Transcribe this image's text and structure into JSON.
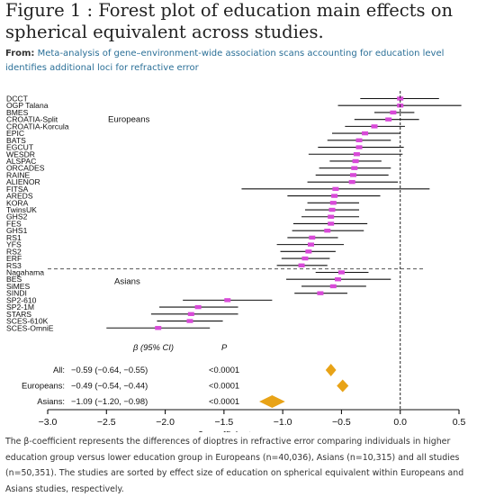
{
  "figure_title": "Figure 1 : Forest plot of education main effects on spherical equivalent across studies.",
  "from_label": "From:",
  "from_link": "Meta-analysis of gene–environment-wide association scans accounting for education level identifies additional loci for refractive error",
  "caption": "The β-coefficient represents the differences of dioptres in refractive error comparing individuals in higher education group versus lower education group in Europeans (n=40,036), Asians (n=10,315) and all studies (n=50,351). The studies are sorted by effect size of education on spherical equivalent within Europeans and Asians studies, respectively.",
  "colors": {
    "accent": "#d84ad8",
    "diamond": "#e8a317",
    "link": "#2a6f97"
  },
  "chart_data": {
    "type": "forest",
    "xlabel": "β-coefficient",
    "xlim": [
      -3.0,
      0.5
    ],
    "ticks": [
      -3.0,
      -2.5,
      -2.0,
      -1.5,
      -1.0,
      -0.5,
      0.0,
      0.5
    ],
    "tick_labels": [
      "−3.0",
      "−2.5",
      "−2.0",
      "−1.5",
      "−1.0",
      "−0.5",
      "0.0",
      "0.5"
    ],
    "reference_line": 0,
    "groups": [
      {
        "name": "Europeans",
        "studies": [
          {
            "study": "DCCT",
            "beta": 0.0,
            "lo": -0.34,
            "hi": 0.33
          },
          {
            "study": "OGP Talana",
            "beta": 0.0,
            "lo": -0.53,
            "hi": 0.52
          },
          {
            "study": "BMES",
            "beta": -0.06,
            "lo": -0.22,
            "hi": 0.12
          },
          {
            "study": "CROATIA-Split",
            "beta": -0.1,
            "lo": -0.39,
            "hi": 0.16
          },
          {
            "study": "CROATIA-Korcula",
            "beta": -0.22,
            "lo": -0.47,
            "hi": 0.04
          },
          {
            "study": "EPIC",
            "beta": -0.3,
            "lo": -0.58,
            "hi": 0.0
          },
          {
            "study": "BATS",
            "beta": -0.35,
            "lo": -0.62,
            "hi": -0.08
          },
          {
            "study": "EGCUT",
            "beta": -0.35,
            "lo": -0.7,
            "hi": 0.03
          },
          {
            "study": "WESDR",
            "beta": -0.37,
            "lo": -0.78,
            "hi": 0.02
          },
          {
            "study": "ALSPAC",
            "beta": -0.38,
            "lo": -0.6,
            "hi": -0.16
          },
          {
            "study": "ORCADES",
            "beta": -0.39,
            "lo": -0.69,
            "hi": -0.08
          },
          {
            "study": "RAINE",
            "beta": -0.4,
            "lo": -0.72,
            "hi": -0.1
          },
          {
            "study": "ALIENOR",
            "beta": -0.41,
            "lo": -0.79,
            "hi": -0.02
          },
          {
            "study": "FITSA",
            "beta": -0.55,
            "lo": -1.35,
            "hi": 0.25
          },
          {
            "study": "AREDS",
            "beta": -0.56,
            "lo": -0.96,
            "hi": -0.17
          },
          {
            "study": "KORA",
            "beta": -0.57,
            "lo": -0.79,
            "hi": -0.35
          },
          {
            "study": "TwinsUK",
            "beta": -0.58,
            "lo": -0.81,
            "hi": -0.35
          },
          {
            "study": "GHS2",
            "beta": -0.59,
            "lo": -0.84,
            "hi": -0.35
          },
          {
            "study": "FES",
            "beta": -0.59,
            "lo": -0.91,
            "hi": -0.28
          },
          {
            "study": "GHS1",
            "beta": -0.62,
            "lo": -0.92,
            "hi": -0.31
          },
          {
            "study": "RS1",
            "beta": -0.75,
            "lo": -0.96,
            "hi": -0.53
          },
          {
            "study": "YFS",
            "beta": -0.76,
            "lo": -1.05,
            "hi": -0.48
          },
          {
            "study": "RS2",
            "beta": -0.78,
            "lo": -1.02,
            "hi": -0.55
          },
          {
            "study": "ERF",
            "beta": -0.81,
            "lo": -1.01,
            "hi": -0.6
          },
          {
            "study": "RS3",
            "beta": -0.84,
            "lo": -1.05,
            "hi": -0.62
          }
        ]
      },
      {
        "name": "Asians",
        "studies": [
          {
            "study": "Nagahama",
            "beta": -0.5,
            "lo": -0.72,
            "hi": -0.27
          },
          {
            "study": "BES",
            "beta": -0.53,
            "lo": -0.97,
            "hi": -0.08
          },
          {
            "study": "SiMES",
            "beta": -0.57,
            "lo": -0.84,
            "hi": -0.29
          },
          {
            "study": "SINDI",
            "beta": -0.68,
            "lo": -0.9,
            "hi": -0.45
          },
          {
            "study": "SP2-610",
            "beta": -1.47,
            "lo": -1.85,
            "hi": -1.09
          },
          {
            "study": "SP2-1M",
            "beta": -1.72,
            "lo": -2.05,
            "hi": -1.38
          },
          {
            "study": "STARS",
            "beta": -1.78,
            "lo": -2.12,
            "hi": -1.38
          },
          {
            "study": "SCES-610K",
            "beta": -1.79,
            "lo": -2.07,
            "hi": -1.51
          },
          {
            "study": "SCES-OmniE",
            "beta": -2.06,
            "lo": -2.5,
            "hi": -1.62
          }
        ]
      }
    ],
    "table_header": {
      "beta": "β (95% CI)",
      "p": "P"
    },
    "summary": [
      {
        "label": "All:",
        "ci_text": "−0.59 (−0.64, −0.55)",
        "p_text": "<0.0001",
        "beta": -0.59,
        "lo": -0.64,
        "hi": -0.55
      },
      {
        "label": "Europeans:",
        "ci_text": "−0.49 (−0.54, −0.44)",
        "p_text": "<0.0001",
        "beta": -0.49,
        "lo": -0.54,
        "hi": -0.44
      },
      {
        "label": "Asians:",
        "ci_text": "−1.09 (−1.20, −0.98)",
        "p_text": "<0.0001",
        "beta": -1.09,
        "lo": -1.2,
        "hi": -0.98
      }
    ]
  }
}
